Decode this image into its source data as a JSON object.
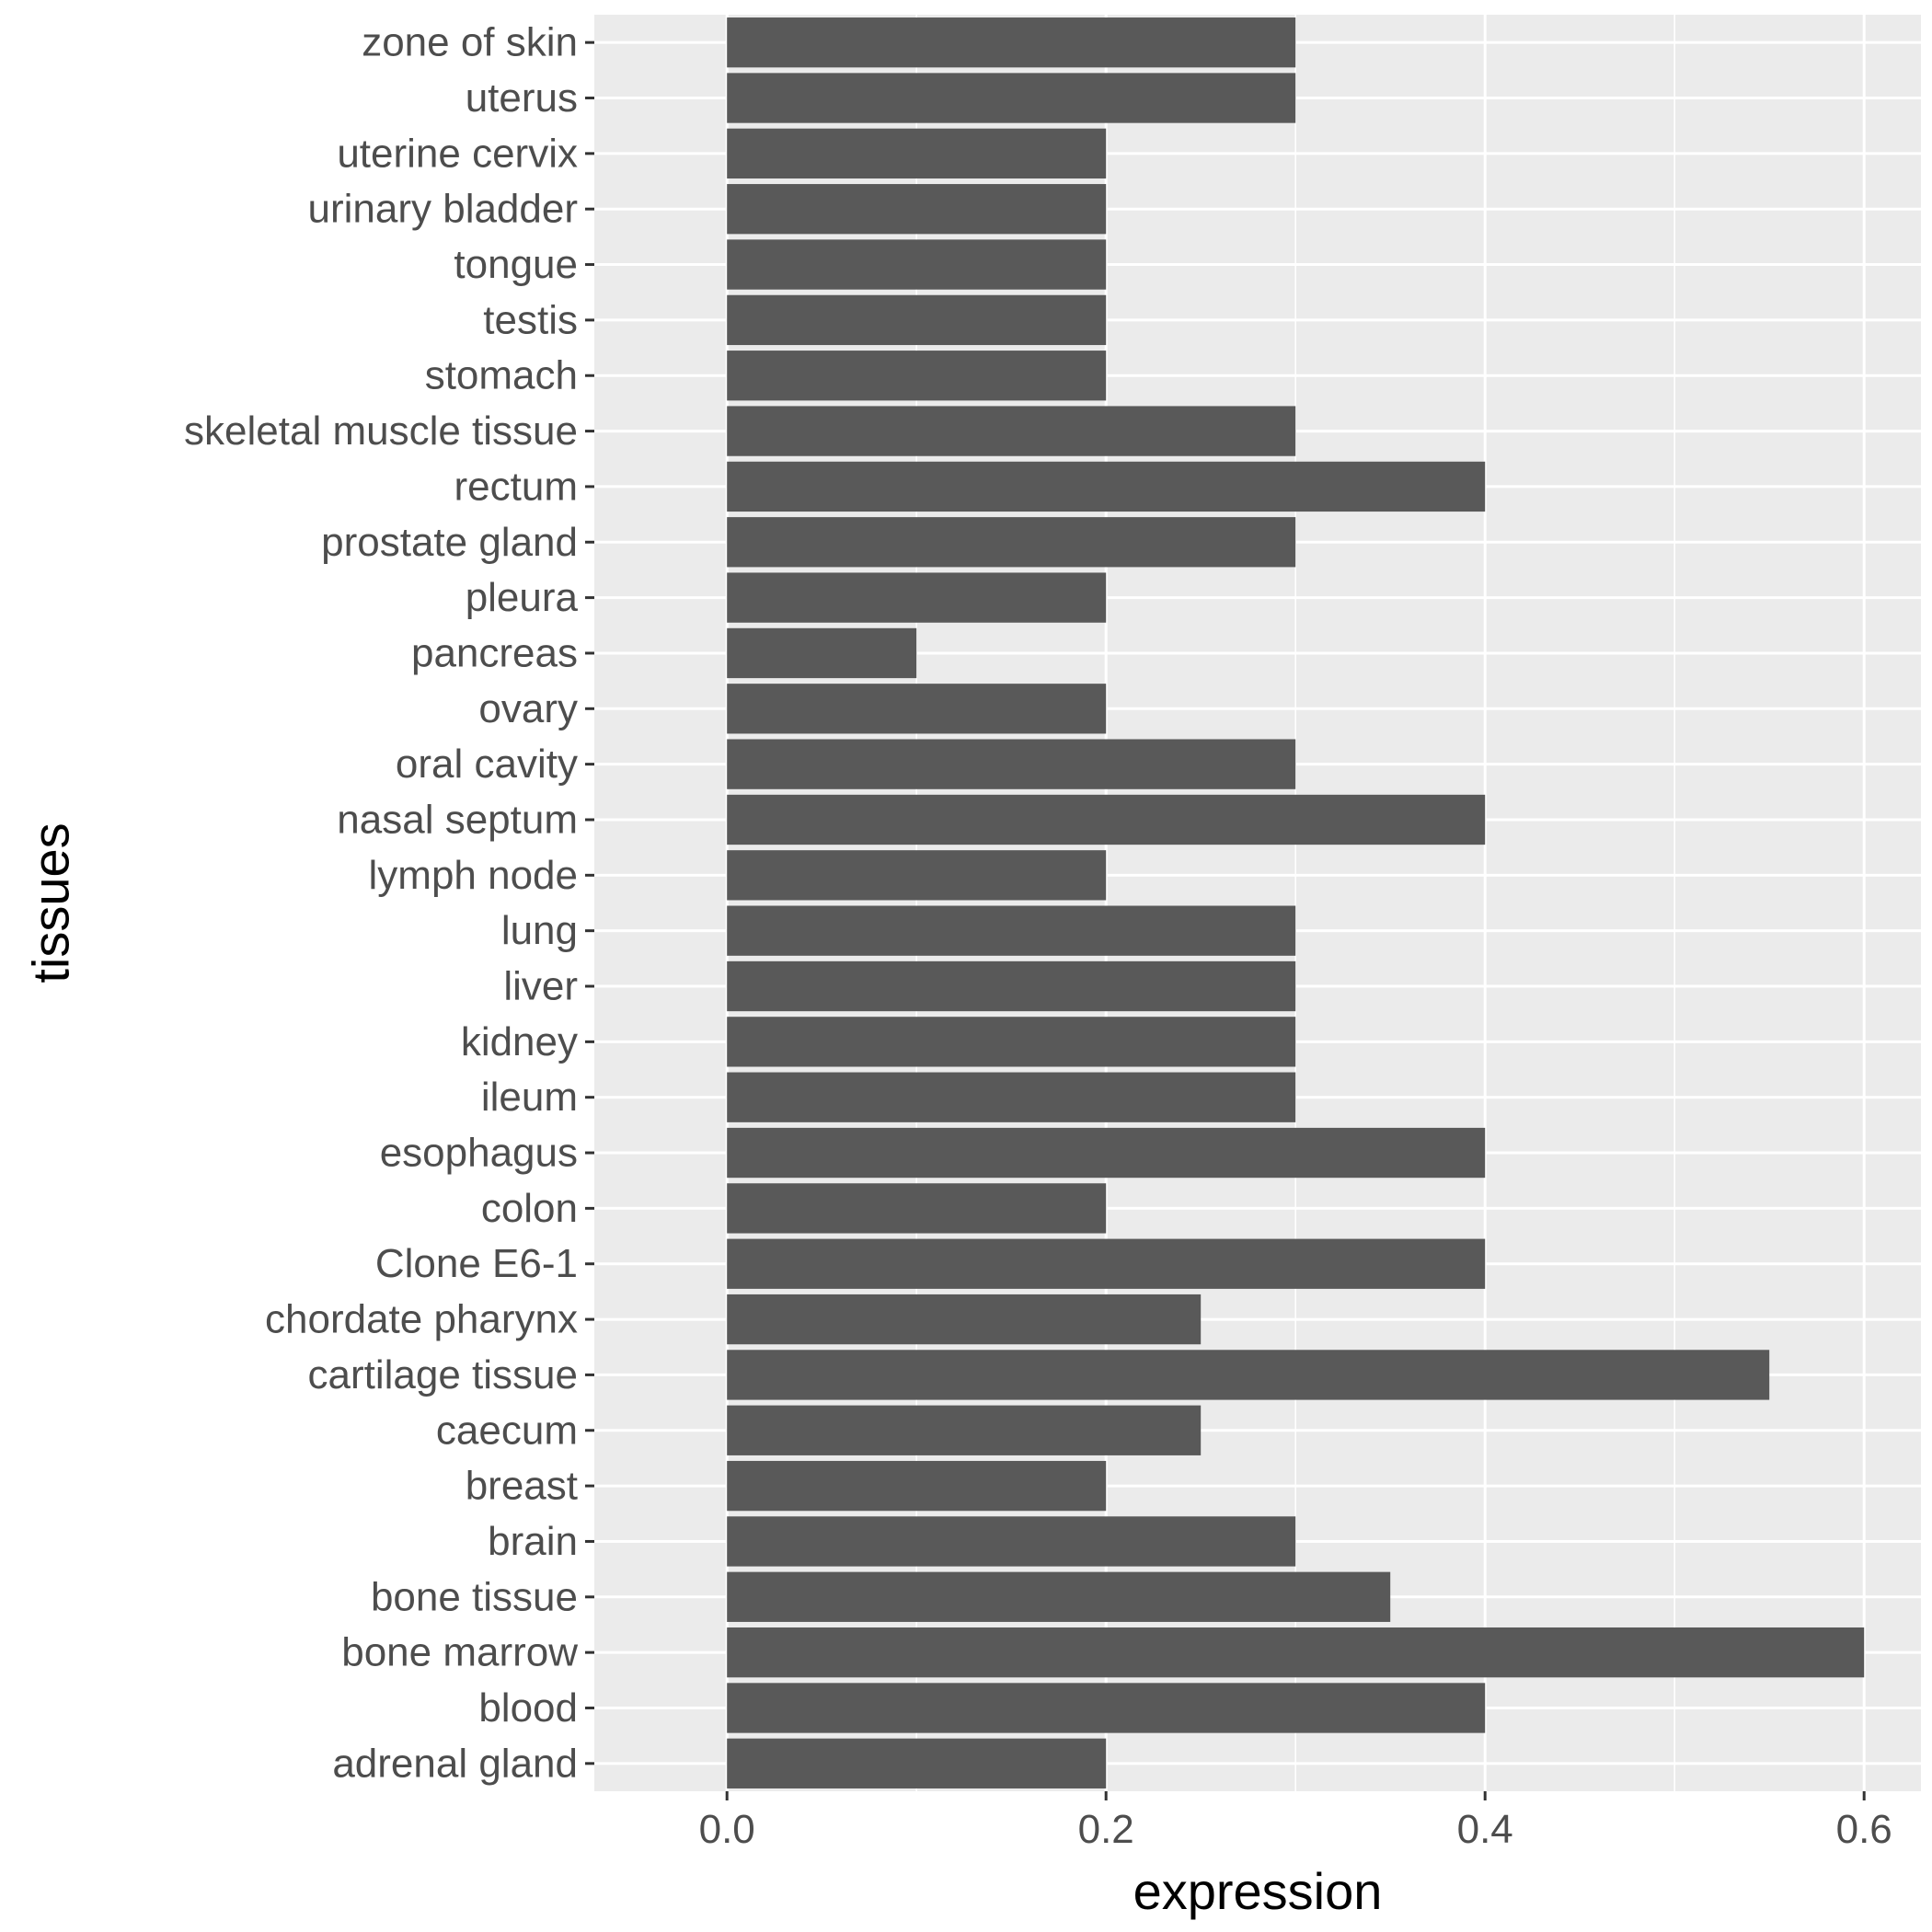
{
  "chart_data": {
    "type": "bar",
    "orientation": "horizontal",
    "xlabel": "expression",
    "ylabel": "tissues",
    "xlim": [
      -0.07,
      0.63
    ],
    "x_ticks": [
      0.0,
      0.2,
      0.4,
      0.6
    ],
    "x_tick_labels": [
      "0.0",
      "0.2",
      "0.4",
      "0.6"
    ],
    "grid": true,
    "colors": {
      "panel": "#ebebeb",
      "grid": "#ffffff",
      "bar": "#595959",
      "tick_text": "#4d4d4d",
      "tick_mark": "#333333",
      "title_text": "#000000"
    },
    "categories": [
      "adrenal gland",
      "blood",
      "bone marrow",
      "bone tissue",
      "brain",
      "breast",
      "caecum",
      "cartilage tissue",
      "chordate pharynx",
      "Clone E6-1",
      "colon",
      "esophagus",
      "ileum",
      "kidney",
      "liver",
      "lung",
      "lymph node",
      "nasal septum",
      "oral cavity",
      "ovary",
      "pancreas",
      "pleura",
      "prostate gland",
      "rectum",
      "skeletal muscle tissue",
      "stomach",
      "testis",
      "tongue",
      "urinary bladder",
      "uterine cervix",
      "uterus",
      "zone of skin"
    ],
    "values": [
      0.2,
      0.4,
      0.6,
      0.35,
      0.3,
      0.2,
      0.25,
      0.55,
      0.25,
      0.4,
      0.2,
      0.4,
      0.3,
      0.3,
      0.3,
      0.3,
      0.2,
      0.4,
      0.3,
      0.2,
      0.1,
      0.2,
      0.3,
      0.4,
      0.3,
      0.2,
      0.2,
      0.2,
      0.2,
      0.2,
      0.3,
      0.3
    ]
  }
}
